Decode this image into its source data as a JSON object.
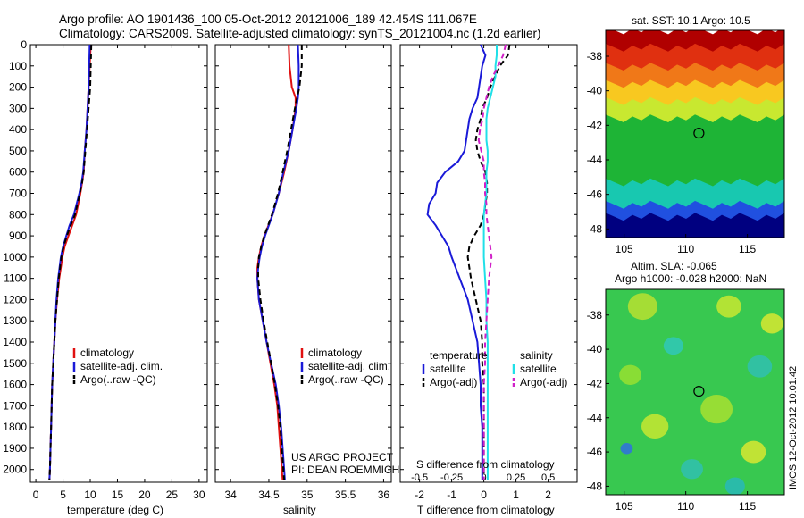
{
  "header": {
    "line1": "Argo profile: AO 1901436_100 05-Oct-2012 20121006_189 42.454S 111.067E",
    "line2": "Climatology: CARS2009. Satellite-adjusted climatology: synTS_20121004.nc (1.2d earlier)"
  },
  "side_note": "IMOS 12-Oct-2012 10:01:42",
  "colors": {
    "climatology": "#e01010",
    "satellite": "#1a1ad8",
    "argo": "#000000",
    "sal_satellite": "#20e0e8",
    "sal_argo": "#d020c8",
    "marker": "#000000"
  },
  "chart_data": [
    {
      "type": "line",
      "panel": "temperature",
      "xlabel": "temperature (deg C)",
      "xlim": [
        -1,
        31.5
      ],
      "xticks": [
        0,
        5,
        10,
        15,
        20,
        25,
        30
      ],
      "ylim": [
        2060,
        0
      ],
      "yticks": [
        0,
        100,
        200,
        300,
        400,
        500,
        600,
        700,
        800,
        900,
        1000,
        1100,
        1200,
        1300,
        1400,
        1500,
        1600,
        1700,
        1800,
        1900,
        2000
      ],
      "depth": [
        0,
        100,
        200,
        300,
        400,
        500,
        600,
        650,
        700,
        800,
        850,
        900,
        950,
        1000,
        1100,
        1200,
        1300,
        1400,
        1500,
        1600,
        1700,
        1800,
        1900,
        2000,
        2050
      ],
      "series": [
        {
          "name": "climatology",
          "color_key": "climatology",
          "dash": false,
          "values": [
            10.1,
            9.9,
            9.7,
            9.5,
            9.3,
            9.0,
            8.8,
            8.5,
            8.2,
            7.4,
            6.7,
            6.0,
            5.3,
            4.9,
            4.3,
            3.9,
            3.6,
            3.4,
            3.2,
            3.0,
            2.9,
            2.8,
            2.7,
            2.6,
            2.5
          ]
        },
        {
          "name": "satellite-adj. clim.",
          "color_key": "satellite",
          "dash": false,
          "values": [
            9.9,
            9.8,
            9.7,
            9.5,
            9.3,
            9.0,
            8.7,
            8.4,
            8.0,
            7.0,
            6.2,
            5.6,
            5.0,
            4.6,
            4.1,
            3.8,
            3.6,
            3.4,
            3.2,
            3.0,
            2.9,
            2.8,
            2.7,
            2.6,
            2.5
          ]
        },
        {
          "name": "Argo(..raw -QC)",
          "color_key": "argo",
          "dash": true,
          "values": [
            10.2,
            10.1,
            10.0,
            9.7,
            9.4,
            9.1,
            8.8,
            8.5,
            8.1,
            7.2,
            6.4,
            5.7,
            5.1,
            4.7,
            4.2,
            3.9,
            3.6,
            3.4,
            3.2,
            3.0,
            2.9,
            2.8,
            2.7,
            2.6,
            2.5
          ]
        }
      ],
      "legend": [
        "climatology",
        "satellite-adj. clim.",
        "Argo(..raw -QC)"
      ]
    },
    {
      "type": "line",
      "panel": "salinity",
      "xlabel": "salinity",
      "xlim": [
        33.8,
        36.1
      ],
      "xticks": [
        34,
        34.5,
        35,
        35.5,
        36
      ],
      "xtick_labels": [
        "34",
        "34.5",
        "35",
        "35.5",
        "36"
      ],
      "ylim": [
        2060,
        0
      ],
      "depth": [
        0,
        100,
        200,
        250,
        300,
        400,
        500,
        600,
        700,
        800,
        900,
        950,
        1000,
        1050,
        1100,
        1200,
        1300,
        1400,
        1500,
        1600,
        1700,
        1800,
        1900,
        2000,
        2050
      ],
      "series": [
        {
          "name": "climatology",
          "color_key": "climatology",
          "dash": false,
          "values": [
            34.76,
            34.77,
            34.8,
            34.85,
            34.85,
            34.81,
            34.76,
            34.7,
            34.63,
            34.55,
            34.44,
            34.4,
            34.37,
            34.35,
            34.35,
            34.37,
            34.42,
            34.47,
            34.52,
            34.57,
            34.61,
            34.63,
            34.65,
            34.67,
            34.68
          ]
        },
        {
          "name": "satellite-adj. clim.",
          "color_key": "satellite",
          "dash": false,
          "values": [
            34.88,
            34.89,
            34.89,
            34.88,
            34.86,
            34.81,
            34.76,
            34.69,
            34.63,
            34.55,
            34.45,
            34.41,
            34.38,
            34.36,
            34.35,
            34.37,
            34.42,
            34.47,
            34.53,
            34.59,
            34.63,
            34.66,
            34.68,
            34.7,
            34.71
          ]
        },
        {
          "name": "Argo(..raw -QC)",
          "color_key": "argo",
          "dash": true,
          "values": [
            34.93,
            34.93,
            34.9,
            34.87,
            34.84,
            34.79,
            34.74,
            34.68,
            34.62,
            34.54,
            34.44,
            34.4,
            34.37,
            34.36,
            34.36,
            34.39,
            34.43,
            34.48,
            34.53,
            34.58,
            34.62,
            34.65,
            34.67,
            34.69,
            34.7
          ]
        }
      ],
      "legend": [
        "climatology",
        "satellite-adj. clim.",
        "Argo(..raw -QC)"
      ],
      "annotation": [
        "US ARGO PROJECT",
        "PI: DEAN ROEMMICH"
      ]
    },
    {
      "type": "line",
      "panel": "difference",
      "xlabel": "T difference from climatology",
      "xlim": [
        -2.6,
        2.9
      ],
      "xticks": [
        -2,
        -1,
        0,
        1,
        2
      ],
      "top_label": "S difference from climatology",
      "top_ticks": [
        -0.5,
        -0.25,
        0,
        0.25,
        0.5
      ],
      "top_tick_labels": [
        "-0.5",
        "-0.25",
        "0",
        "0.25",
        "0.5"
      ],
      "ylim": [
        2060,
        0
      ],
      "depth": [
        0,
        50,
        100,
        150,
        200,
        250,
        300,
        350,
        400,
        450,
        500,
        550,
        600,
        650,
        700,
        750,
        800,
        850,
        900,
        950,
        1000,
        1100,
        1200,
        1300,
        1400,
        1500,
        1600,
        1700,
        1800,
        1900,
        2000,
        2050
      ],
      "series": [
        {
          "name": "T satellite",
          "color_key": "satellite",
          "dash": false,
          "axis": "T",
          "values": [
            -0.1,
            0.05,
            -0.05,
            -0.1,
            -0.15,
            -0.2,
            -0.35,
            -0.45,
            -0.5,
            -0.55,
            -0.6,
            -0.8,
            -1.2,
            -1.45,
            -1.5,
            -1.7,
            -1.75,
            -1.5,
            -1.3,
            -1.1,
            -1.0,
            -0.75,
            -0.5,
            -0.35,
            -0.2,
            -0.15,
            -0.1,
            -0.1,
            -0.05,
            -0.05,
            -0.05,
            -0.05
          ]
        },
        {
          "name": "T Argo(-adj)",
          "color_key": "argo",
          "dash": true,
          "axis": "T",
          "values": [
            0.8,
            0.75,
            0.5,
            0.35,
            0.2,
            0.1,
            -0.05,
            -0.1,
            -0.2,
            -0.25,
            -0.2,
            -0.1,
            0.05,
            0.1,
            0.1,
            0.05,
            0.0,
            -0.1,
            -0.3,
            -0.45,
            -0.5,
            -0.4,
            -0.25,
            -0.1,
            -0.05,
            -0.05,
            0.0,
            0.0,
            0.0,
            0.0,
            0.0,
            0.0
          ]
        },
        {
          "name": "S satellite",
          "color_key": "sal_satellite",
          "dash": false,
          "axis": "S",
          "values": [
            0.1,
            0.1,
            0.09,
            0.09,
            0.07,
            0.05,
            0.03,
            0.02,
            0.02,
            0.02,
            0.03,
            0.03,
            0.02,
            0.02,
            0.02,
            0.01,
            0.0,
            0.0,
            0.0,
            0.0,
            0.0,
            0.01,
            0.02,
            0.02,
            0.03,
            0.03,
            0.03,
            0.03,
            0.03,
            0.03,
            0.03,
            0.03
          ]
        },
        {
          "name": "S Argo(-adj)",
          "color_key": "sal_argo",
          "dash": true,
          "axis": "S",
          "values": [
            0.17,
            0.15,
            0.11,
            0.07,
            0.04,
            0.02,
            0.0,
            -0.01,
            -0.03,
            -0.04,
            -0.02,
            0.0,
            0.0,
            0.01,
            0.01,
            0.02,
            0.02,
            0.03,
            0.04,
            0.05,
            0.06,
            0.04,
            0.03,
            0.02,
            0.01,
            0.01,
            0.0,
            0.0,
            0.0,
            0.0,
            0.0,
            0.0
          ]
        }
      ],
      "legend_left": {
        "title": "temperature",
        "items": [
          "satellite",
          "Argo(-adj)"
        ]
      },
      "legend_right": {
        "title": "salinity",
        "items": [
          "satellite",
          "Argo(-adj)"
        ]
      }
    },
    {
      "type": "heatmap",
      "panel": "sst_map",
      "title": "sat. SST: 10.1  Argo: 10.5",
      "xlim": [
        103.5,
        118
      ],
      "ylim": [
        -48.5,
        -36.5
      ],
      "xticks": [
        105,
        110,
        115
      ],
      "yticks": [
        -38,
        -40,
        -42,
        -44,
        -46,
        -48
      ],
      "marker": [
        111.067,
        -42.454
      ],
      "bands_north_to_south": [
        {
          "color": "#b00000",
          "from": -36.5,
          "to": -37.5
        },
        {
          "color": "#e03010",
          "from": -37.5,
          "to": -38.6
        },
        {
          "color": "#f07818",
          "from": -38.6,
          "to": -39.6
        },
        {
          "color": "#f8c820",
          "from": -39.6,
          "to": -40.6
        },
        {
          "color": "#c8e830",
          "from": -40.6,
          "to": -41.6
        },
        {
          "color": "#1eb436",
          "from": -41.6,
          "to": -45.3
        },
        {
          "color": "#18c8b0",
          "from": -45.3,
          "to": -46.6
        },
        {
          "color": "#2050e0",
          "from": -46.6,
          "to": -47.3
        },
        {
          "color": "#000080",
          "from": -47.3,
          "to": -48.5
        }
      ]
    },
    {
      "type": "heatmap",
      "panel": "sla_map",
      "title": "Altim. SLA: -0.065",
      "subtitle": "Argo h1000: -0.028 h2000: NaN",
      "xlim": [
        103.5,
        118
      ],
      "ylim": [
        -48.5,
        -36.5
      ],
      "xticks": [
        105,
        110,
        115
      ],
      "yticks": [
        -38,
        -40,
        -42,
        -44,
        -46,
        -48
      ],
      "marker": [
        111.067,
        -42.454
      ],
      "background": "#38c850",
      "blobs": [
        {
          "lon": 106.5,
          "lat": -37.5,
          "r": 1.2,
          "color": "#b8e030"
        },
        {
          "lon": 113.5,
          "lat": -37.5,
          "r": 1.0,
          "color": "#c8e830"
        },
        {
          "lon": 117.0,
          "lat": -38.5,
          "r": 0.9,
          "color": "#d8e830"
        },
        {
          "lon": 109.0,
          "lat": -39.8,
          "r": 0.8,
          "color": "#30c8b8"
        },
        {
          "lon": 105.5,
          "lat": -41.5,
          "r": 0.9,
          "color": "#98e030"
        },
        {
          "lon": 116.0,
          "lat": -41.0,
          "r": 1.0,
          "color": "#30c0b0"
        },
        {
          "lon": 112.5,
          "lat": -43.5,
          "r": 1.3,
          "color": "#a8e030"
        },
        {
          "lon": 107.5,
          "lat": -44.5,
          "r": 1.1,
          "color": "#c8e830"
        },
        {
          "lon": 105.2,
          "lat": -45.8,
          "r": 0.5,
          "color": "#3070e0"
        },
        {
          "lon": 110.5,
          "lat": -47.0,
          "r": 0.9,
          "color": "#30c0b0"
        },
        {
          "lon": 115.5,
          "lat": -46.0,
          "r": 1.0,
          "color": "#d8e830"
        },
        {
          "lon": 114.0,
          "lat": -48.0,
          "r": 0.8,
          "color": "#28b8b8"
        }
      ]
    }
  ]
}
